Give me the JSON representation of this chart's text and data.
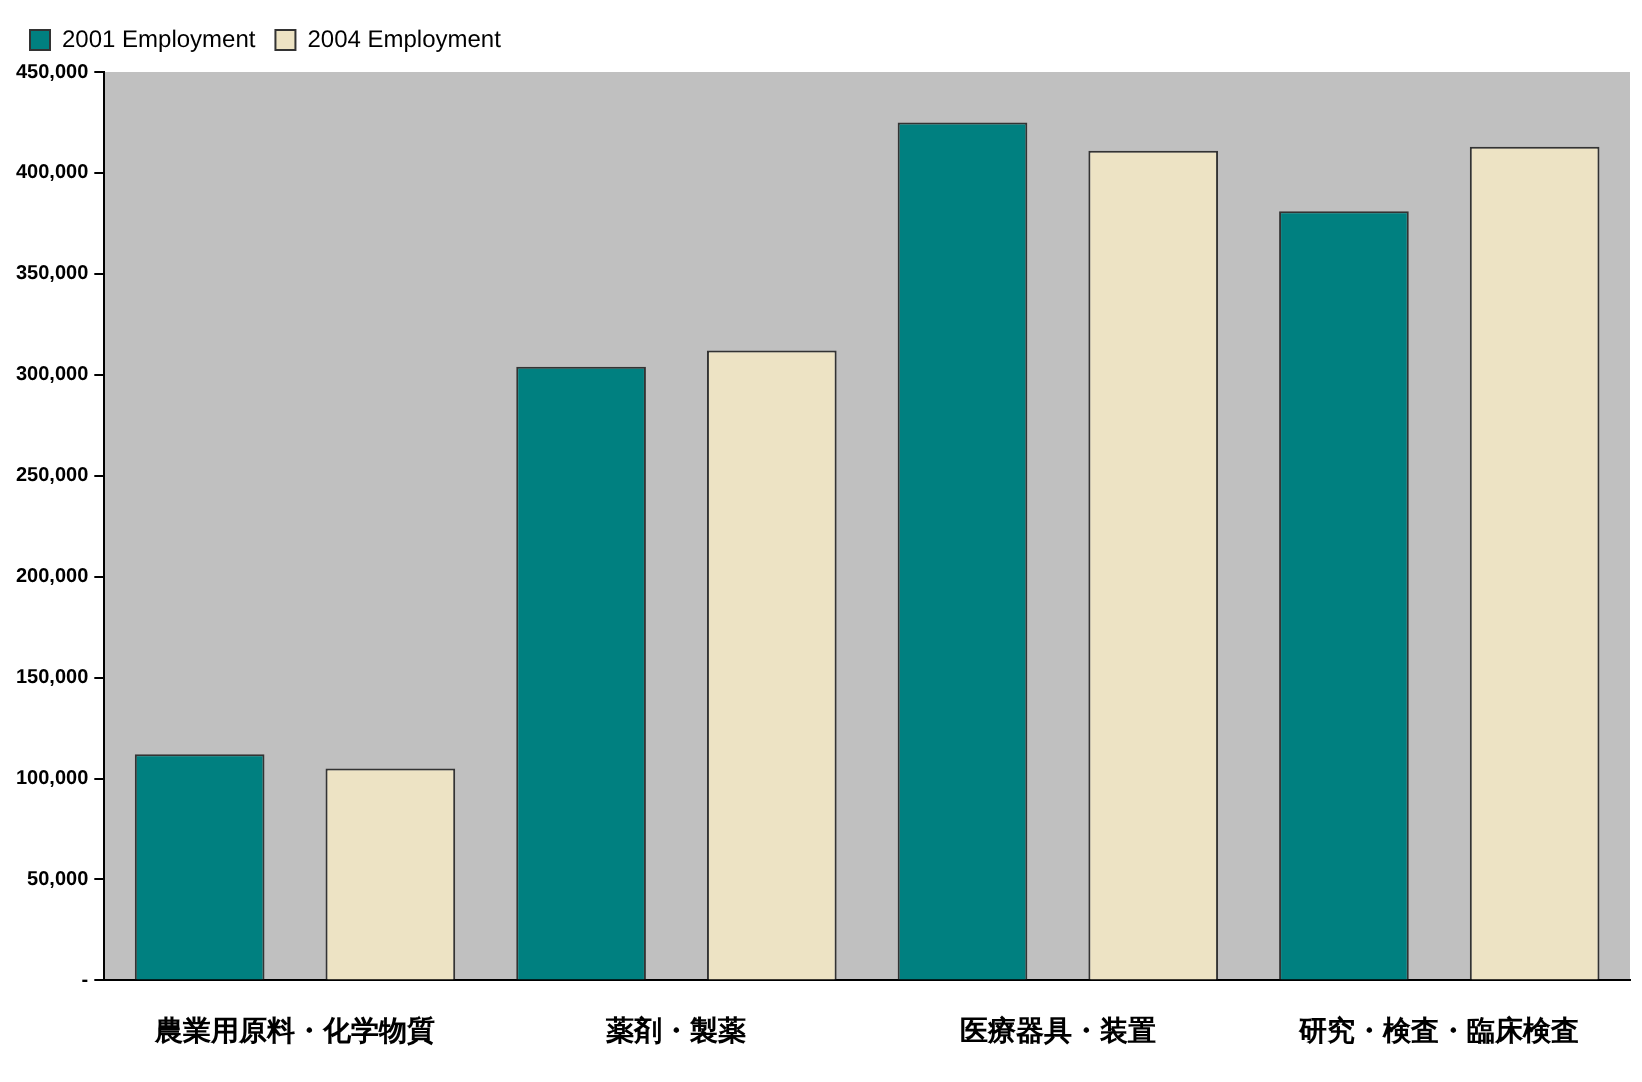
{
  "chart_data": {
    "type": "bar",
    "categories": [
      "農業用原料・化学物質",
      "薬剤・製薬",
      "医療器具・装置",
      "研究・検査・臨床検査"
    ],
    "series": [
      {
        "name": "2001 Employment",
        "color": "#008080",
        "values": [
          112000,
          304000,
          425000,
          381000
        ]
      },
      {
        "name": "2004 Employment",
        "color": "#ede3c4",
        "values": [
          105000,
          312000,
          411000,
          413000
        ]
      }
    ],
    "ylim": [
      0,
      450000
    ],
    "yticks": [
      {
        "value": 0,
        "label": "-"
      },
      {
        "value": 50000,
        "label": "50,000"
      },
      {
        "value": 100000,
        "label": "100,000"
      },
      {
        "value": 150000,
        "label": "150,000"
      },
      {
        "value": 200000,
        "label": "200,000"
      },
      {
        "value": 250000,
        "label": "250,000"
      },
      {
        "value": 300000,
        "label": "300,000"
      },
      {
        "value": 350000,
        "label": "350,000"
      },
      {
        "value": 400000,
        "label": "400,000"
      },
      {
        "value": 450000,
        "label": "450,000"
      }
    ],
    "grid": false,
    "legend": "top left"
  }
}
